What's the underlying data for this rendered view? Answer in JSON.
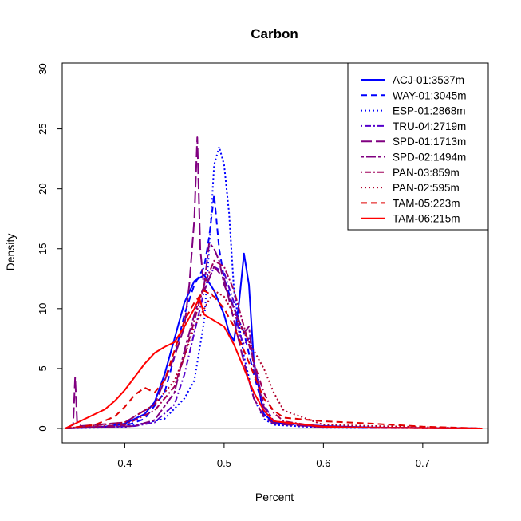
{
  "chart_data": {
    "type": "line",
    "title": "Carbon",
    "xlabel": "Percent",
    "ylabel": "Density",
    "xlim": [
      0.337,
      0.766
    ],
    "ylim": [
      -1.2,
      30.5
    ],
    "xticks": [
      0.4,
      0.5,
      0.6,
      0.7
    ],
    "xtick_labels": [
      "0.4",
      "0.5",
      "0.6",
      "0.7"
    ],
    "yticks": [
      0,
      5,
      10,
      15,
      20,
      25,
      30
    ],
    "ytick_labels": [
      "0",
      "5",
      "10",
      "15",
      "20",
      "25",
      "30"
    ],
    "zero_line_color": "#bebebe",
    "grid": false,
    "legend_position": "top-right",
    "series": [
      {
        "name": "ACJ-01:3537m",
        "color": "#0000ff",
        "dash": "solid",
        "x": [
          0.34,
          0.38,
          0.4,
          0.42,
          0.43,
          0.44,
          0.45,
          0.46,
          0.47,
          0.48,
          0.49,
          0.5,
          0.505,
          0.51,
          0.515,
          0.52,
          0.525,
          0.53,
          0.54,
          0.55,
          0.6,
          0.65,
          0.7,
          0.76
        ],
        "y": [
          0,
          0.15,
          0.4,
          1.2,
          2.2,
          4.5,
          7.5,
          10.5,
          12.3,
          12.8,
          11.5,
          9.5,
          8.0,
          7.3,
          10.5,
          14.6,
          12.0,
          5.5,
          1.2,
          0.5,
          0.2,
          0.08,
          0.03,
          0
        ]
      },
      {
        "name": "WAY-01:3045m",
        "color": "#0000ff",
        "dash": "dashed",
        "x": [
          0.34,
          0.4,
          0.42,
          0.44,
          0.45,
          0.46,
          0.47,
          0.48,
          0.485,
          0.49,
          0.495,
          0.5,
          0.51,
          0.52,
          0.53,
          0.54,
          0.55,
          0.6,
          0.65,
          0.76
        ],
        "y": [
          0,
          0.2,
          0.8,
          3.0,
          6.0,
          9.5,
          12.0,
          13.5,
          16.0,
          19.5,
          15.0,
          12.5,
          10.0,
          8.0,
          4.5,
          1.5,
          0.5,
          0.1,
          0.03,
          0
        ]
      },
      {
        "name": "ESP-01:2868m",
        "color": "#0000ff",
        "dash": "dotted",
        "x": [
          0.34,
          0.4,
          0.44,
          0.46,
          0.47,
          0.48,
          0.485,
          0.49,
          0.495,
          0.5,
          0.505,
          0.51,
          0.52,
          0.53,
          0.54,
          0.55,
          0.6,
          0.76
        ],
        "y": [
          0,
          0.1,
          0.8,
          2.5,
          4.0,
          9.0,
          15.0,
          22.0,
          23.5,
          22.0,
          18.0,
          11.5,
          6.0,
          2.5,
          0.8,
          0.3,
          0.05,
          0
        ]
      },
      {
        "name": "TRU-04:2719m",
        "color": "#5500cc",
        "dash": "dotdash",
        "x": [
          0.34,
          0.41,
          0.43,
          0.45,
          0.46,
          0.47,
          0.48,
          0.49,
          0.5,
          0.51,
          0.515,
          0.52,
          0.525,
          0.53,
          0.54,
          0.55,
          0.6,
          0.76
        ],
        "y": [
          0,
          0.2,
          0.5,
          2.0,
          4.5,
          8.0,
          11.5,
          13.5,
          13.0,
          10.5,
          8.0,
          7.0,
          7.5,
          5.5,
          2.0,
          0.6,
          0.1,
          0
        ]
      },
      {
        "name": "SPD-01:1713m",
        "color": "#800080",
        "dash": "longdash",
        "x": [
          0.34,
          0.348,
          0.35,
          0.352,
          0.356,
          0.4,
          0.43,
          0.45,
          0.46,
          0.465,
          0.47,
          0.473,
          0.476,
          0.48,
          0.49,
          0.5,
          0.51,
          0.52,
          0.53,
          0.54,
          0.55,
          0.6,
          0.76
        ],
        "y": [
          0,
          0.3,
          4.3,
          0.5,
          0.2,
          0.5,
          2.0,
          6.0,
          8.5,
          12.0,
          17.5,
          24.3,
          15.0,
          11.5,
          13.5,
          12.5,
          9.0,
          5.5,
          2.5,
          1.0,
          0.4,
          0.1,
          0
        ]
      },
      {
        "name": "SPD-02:1494m",
        "color": "#800080",
        "dash": "twodash",
        "x": [
          0.34,
          0.41,
          0.43,
          0.45,
          0.46,
          0.47,
          0.48,
          0.485,
          0.49,
          0.495,
          0.5,
          0.51,
          0.52,
          0.525,
          0.53,
          0.54,
          0.55,
          0.6,
          0.76
        ],
        "y": [
          0,
          0.2,
          0.7,
          3.0,
          6.5,
          9.5,
          12.0,
          15.5,
          15.0,
          14.0,
          12.0,
          10.0,
          8.0,
          8.5,
          5.0,
          1.8,
          0.6,
          0.1,
          0
        ]
      },
      {
        "name": "PAN-03:859m",
        "color": "#a0005a",
        "dash": "dotdash",
        "x": [
          0.34,
          0.4,
          0.43,
          0.45,
          0.46,
          0.47,
          0.48,
          0.49,
          0.5,
          0.51,
          0.52,
          0.53,
          0.54,
          0.55,
          0.56,
          0.6,
          0.76
        ],
        "y": [
          0,
          0.3,
          1.5,
          3.5,
          6.0,
          9.0,
          12.0,
          14.0,
          13.5,
          11.5,
          8.5,
          5.5,
          3.0,
          1.3,
          0.6,
          0.1,
          0
        ]
      },
      {
        "name": "PAN-02:595m",
        "color": "#b0002c",
        "dash": "dotted",
        "x": [
          0.34,
          0.4,
          0.43,
          0.45,
          0.46,
          0.47,
          0.48,
          0.49,
          0.5,
          0.51,
          0.52,
          0.53,
          0.54,
          0.55,
          0.56,
          0.6,
          0.76
        ],
        "y": [
          0,
          0.5,
          2.0,
          4.0,
          6.0,
          8.5,
          10.0,
          11.5,
          11.0,
          9.5,
          8.0,
          6.5,
          5.0,
          3.0,
          1.5,
          0.3,
          0
        ]
      },
      {
        "name": "TAM-05:223m",
        "color": "#e00000",
        "dash": "dashed",
        "x": [
          0.34,
          0.37,
          0.39,
          0.4,
          0.41,
          0.42,
          0.43,
          0.44,
          0.45,
          0.46,
          0.47,
          0.48,
          0.49,
          0.5,
          0.51,
          0.52,
          0.53,
          0.54,
          0.55,
          0.56,
          0.6,
          0.65,
          0.7,
          0.76
        ],
        "y": [
          0,
          0.3,
          1.0,
          1.8,
          2.8,
          3.4,
          3.0,
          4.0,
          6.5,
          9.0,
          10.5,
          11.5,
          11.0,
          10.0,
          8.5,
          6.5,
          4.5,
          2.5,
          1.5,
          0.9,
          0.6,
          0.4,
          0.15,
          0
        ]
      },
      {
        "name": "TAM-06:215m",
        "color": "#ff0000",
        "dash": "solid",
        "x": [
          0.34,
          0.36,
          0.38,
          0.39,
          0.4,
          0.41,
          0.42,
          0.43,
          0.44,
          0.45,
          0.46,
          0.47,
          0.475,
          0.48,
          0.49,
          0.5,
          0.51,
          0.52,
          0.53,
          0.54,
          0.55,
          0.6,
          0.65,
          0.7,
          0.76
        ],
        "y": [
          0,
          0.8,
          1.6,
          2.3,
          3.2,
          4.3,
          5.4,
          6.3,
          6.8,
          7.2,
          8.5,
          10.0,
          10.9,
          9.5,
          9.0,
          8.5,
          7.0,
          5.0,
          3.0,
          1.5,
          0.6,
          0.15,
          0.05,
          0.02,
          0
        ]
      }
    ]
  }
}
